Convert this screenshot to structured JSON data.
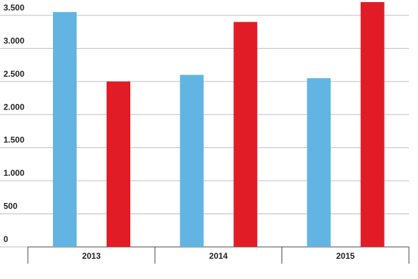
{
  "chart_data": {
    "type": "bar",
    "categories": [
      "2013",
      "2014",
      "2015"
    ],
    "series": [
      {
        "color": "#62b5e3",
        "values": [
          3550,
          2600,
          2550
        ]
      },
      {
        "color": "#e21c27",
        "values": [
          2500,
          3400,
          3700
        ]
      }
    ],
    "ylim": [
      0,
      3700
    ],
    "yticks": [
      0,
      500,
      {
        "value": 1000,
        "label": "1.000"
      },
      {
        "value": 1500,
        "label": "1.500"
      },
      {
        "value": 2000,
        "label": "2.000"
      },
      {
        "value": 2500,
        "label": "2.500"
      },
      {
        "value": 3000,
        "label": "3.000"
      },
      {
        "value": 3500,
        "label": "3.500"
      }
    ],
    "grid": true
  }
}
